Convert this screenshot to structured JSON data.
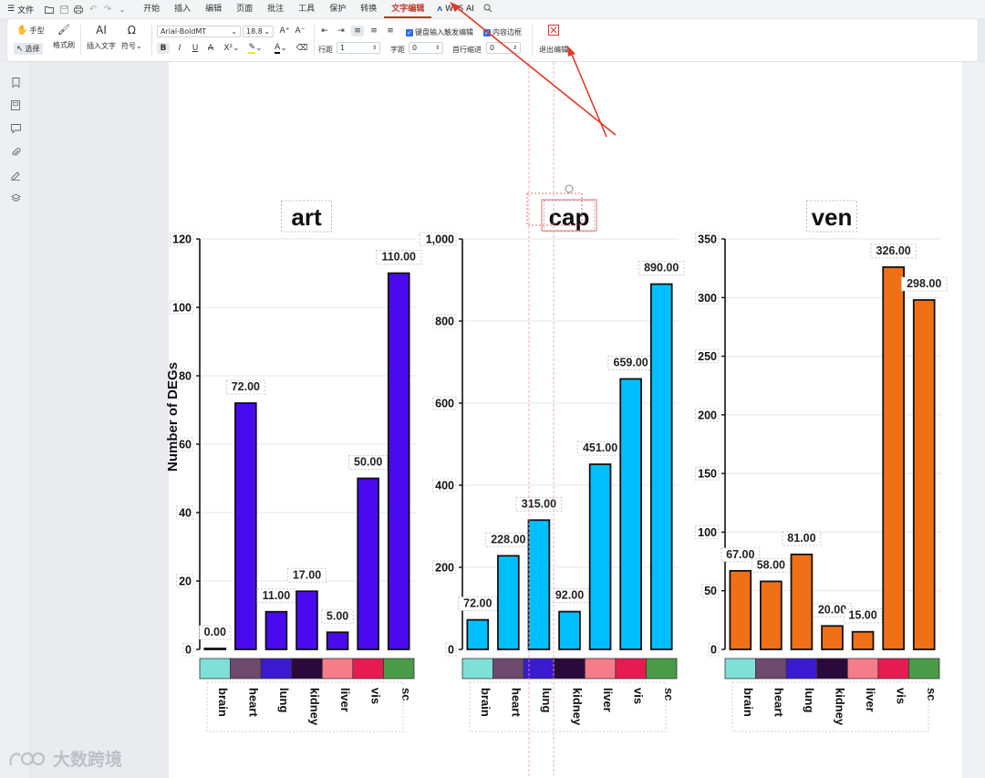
{
  "menubar": {
    "file_label": "文件",
    "tabs": [
      "开始",
      "插入",
      "编辑",
      "页面",
      "批注",
      "工具",
      "保护",
      "转换",
      "文字编辑"
    ],
    "active_tab": "文字编辑",
    "wps_ai_label": "WPS AI"
  },
  "ribbon": {
    "hand_label": "手型",
    "select_label": "选择",
    "format_brush_label": "格式刷",
    "insert_text_label": "插入文字",
    "symbol_label": "符号",
    "font_name": "Arial-BoldMT",
    "font_size": "18.8",
    "bold_label": "B",
    "italic_label": "I",
    "underline_label": "U",
    "strike_label": "A",
    "superscript_label": "X²",
    "keyboard_trigger_label": "键盘输入触发编辑",
    "content_border_label": "内容边框",
    "line_spacing_label": "行距",
    "line_spacing_value": "1",
    "char_spacing_label": "字距",
    "char_spacing_value": "0",
    "indent_label": "首行缩进",
    "indent_value": "0",
    "exit_label": "退出编辑"
  },
  "sidebar": {
    "icons": [
      "bookmark-icon",
      "thumbnail-icon",
      "comment-icon",
      "attachment-icon",
      "signature-icon",
      "layers-icon"
    ]
  },
  "colors": {
    "art_bar": "#4a0aef",
    "cap_bar": "#00bfff",
    "ven_bar": "#f07018",
    "tissues": [
      "#7fe0d8",
      "#6e4a6e",
      "#3a1ad0",
      "#2a0a3a",
      "#f77c8a",
      "#e81a52",
      "#4a9a48"
    ],
    "annotation_red": "#e03a2a"
  },
  "chart_data": [
    {
      "type": "bar",
      "title": "art",
      "ylabel": "Number of DEGs",
      "categories": [
        "brain",
        "heart",
        "lung",
        "kidney",
        "liver",
        "vis",
        "sc"
      ],
      "values": [
        0,
        72,
        11,
        17,
        5,
        50,
        110
      ],
      "value_labels": [
        "0.00",
        "72.00",
        "11.00",
        "17.00",
        "5.00",
        "50.00",
        "110.00"
      ],
      "ylim": [
        0,
        120
      ],
      "yticks": [
        0,
        20,
        40,
        60,
        80,
        100,
        120
      ],
      "ytick_labels": [
        "0",
        "20",
        "40",
        "60",
        "80",
        "100",
        "120"
      ]
    },
    {
      "type": "bar",
      "title": "cap",
      "categories": [
        "brain",
        "heart",
        "lung",
        "kidney",
        "liver",
        "vis",
        "sc"
      ],
      "values": [
        72,
        228,
        315,
        92,
        451,
        659,
        890
      ],
      "value_labels": [
        "72.00",
        "228.00",
        "315.00",
        "92.00",
        "451.00",
        "659.00",
        "890.00"
      ],
      "ylim": [
        0,
        1000
      ],
      "yticks": [
        0,
        200,
        400,
        600,
        800,
        1000
      ],
      "ytick_labels": [
        "0",
        "200",
        "400",
        "600",
        "800",
        "1,000"
      ]
    },
    {
      "type": "bar",
      "title": "ven",
      "categories": [
        "brain",
        "heart",
        "lung",
        "kidney",
        "liver",
        "vis",
        "sc"
      ],
      "values": [
        67,
        58,
        81,
        20,
        15,
        326,
        298
      ],
      "value_labels": [
        "67.00",
        "58.00",
        "81.00",
        "20.00",
        "15.00",
        "326.00",
        "298.00"
      ],
      "ylim": [
        0,
        350
      ],
      "yticks": [
        0,
        50,
        100,
        150,
        200,
        250,
        300,
        350
      ],
      "ytick_labels": [
        "0",
        "50",
        "100",
        "150",
        "200",
        "250",
        "300",
        "350"
      ]
    }
  ],
  "watermark": {
    "text": "大数跨境"
  }
}
